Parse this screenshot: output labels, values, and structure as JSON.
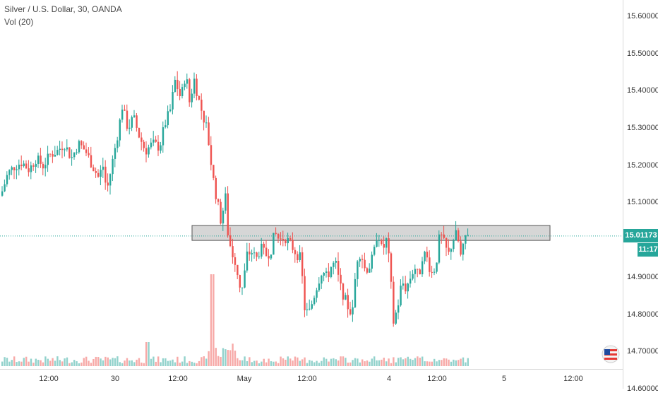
{
  "legend": {
    "title": "Silver / U.S. Dollar, 30, OANDA",
    "volume": "Vol (20)"
  },
  "colors": {
    "up": "#26a69a",
    "down": "#ef5350",
    "up_volume": "#92d2cc",
    "down_volume": "#f7a9a7",
    "price_line": "#26a69a",
    "zone_fill": "#d6d6d6",
    "zone_stroke": "#555555"
  },
  "price_axis": {
    "ticks": [
      "15.60000",
      "15.50000",
      "15.40000",
      "15.30000",
      "15.20000",
      "15.10000",
      "14.90000",
      "14.80000",
      "14.70000",
      "14.60000"
    ]
  },
  "last_price": {
    "value": "15.01173",
    "countdown": "11:17"
  },
  "time_axis": {
    "labels": [
      "12:00",
      "30",
      "12:00",
      "May",
      "12:00",
      "4",
      "12:00",
      "5",
      "12:00"
    ]
  },
  "chart_data": {
    "type": "candlestick",
    "title": "Silver / U.S. Dollar, 30, OANDA",
    "interval": "30",
    "source": "OANDA",
    "indicator": "Vol (20)",
    "ylim": [
      14.53,
      15.63
    ],
    "last_price": 15.01173,
    "resistance_zone": {
      "from": 15.0,
      "to": 15.04
    },
    "series": [
      {
        "name": "price",
        "close_path": [
          {
            "x": 0,
            "y": 15.12
          },
          {
            "x": 10,
            "y": 15.18
          },
          {
            "x": 20,
            "y": 15.2
          },
          {
            "x": 30,
            "y": 15.21
          },
          {
            "x": 40,
            "y": 15.19
          },
          {
            "x": 50,
            "y": 15.22
          },
          {
            "x": 60,
            "y": 15.2
          },
          {
            "x": 70,
            "y": 15.23
          },
          {
            "x": 80,
            "y": 15.24
          },
          {
            "x": 90,
            "y": 15.26
          },
          {
            "x": 100,
            "y": 15.22
          },
          {
            "x": 110,
            "y": 15.26
          },
          {
            "x": 120,
            "y": 15.24
          },
          {
            "x": 130,
            "y": 15.2
          },
          {
            "x": 138,
            "y": 15.17
          },
          {
            "x": 145,
            "y": 15.2
          },
          {
            "x": 150,
            "y": 15.13
          },
          {
            "x": 156,
            "y": 15.19
          },
          {
            "x": 162,
            "y": 15.25
          },
          {
            "x": 167,
            "y": 15.3
          },
          {
            "x": 172,
            "y": 15.36
          },
          {
            "x": 180,
            "y": 15.3
          },
          {
            "x": 188,
            "y": 15.33
          },
          {
            "x": 196,
            "y": 15.28
          },
          {
            "x": 205,
            "y": 15.24
          },
          {
            "x": 215,
            "y": 15.26
          },
          {
            "x": 225,
            "y": 15.25
          },
          {
            "x": 232,
            "y": 15.31
          },
          {
            "x": 240,
            "y": 15.35
          },
          {
            "x": 247,
            "y": 15.43
          },
          {
            "x": 255,
            "y": 15.38
          },
          {
            "x": 262,
            "y": 15.45
          },
          {
            "x": 268,
            "y": 15.36
          },
          {
            "x": 273,
            "y": 15.44
          },
          {
            "x": 280,
            "y": 15.38
          },
          {
            "x": 287,
            "y": 15.33
          },
          {
            "x": 292,
            "y": 15.3
          },
          {
            "x": 297,
            "y": 15.22
          },
          {
            "x": 302,
            "y": 15.15
          },
          {
            "x": 307,
            "y": 15.1
          },
          {
            "x": 312,
            "y": 15.05
          },
          {
            "x": 318,
            "y": 15.12
          },
          {
            "x": 322,
            "y": 15.01
          },
          {
            "x": 327,
            "y": 14.97
          },
          {
            "x": 333,
            "y": 14.94
          },
          {
            "x": 338,
            "y": 14.88
          },
          {
            "x": 343,
            "y": 14.87
          },
          {
            "x": 348,
            "y": 14.96
          },
          {
            "x": 355,
            "y": 14.97
          },
          {
            "x": 362,
            "y": 14.95
          },
          {
            "x": 368,
            "y": 14.98
          },
          {
            "x": 375,
            "y": 14.96
          },
          {
            "x": 382,
            "y": 14.97
          },
          {
            "x": 388,
            "y": 15.02
          },
          {
            "x": 395,
            "y": 15.0
          },
          {
            "x": 402,
            "y": 15.01
          },
          {
            "x": 410,
            "y": 14.99
          },
          {
            "x": 417,
            "y": 14.97
          },
          {
            "x": 425,
            "y": 14.95
          },
          {
            "x": 430,
            "y": 14.82
          },
          {
            "x": 436,
            "y": 14.8
          },
          {
            "x": 442,
            "y": 14.84
          },
          {
            "x": 448,
            "y": 14.88
          },
          {
            "x": 455,
            "y": 14.92
          },
          {
            "x": 462,
            "y": 14.9
          },
          {
            "x": 468,
            "y": 14.93
          },
          {
            "x": 474,
            "y": 14.94
          },
          {
            "x": 480,
            "y": 14.88
          },
          {
            "x": 486,
            "y": 14.85
          },
          {
            "x": 492,
            "y": 14.82
          },
          {
            "x": 498,
            "y": 14.8
          },
          {
            "x": 504,
            "y": 14.95
          },
          {
            "x": 510,
            "y": 14.97
          },
          {
            "x": 516,
            "y": 14.92
          },
          {
            "x": 522,
            "y": 14.93
          },
          {
            "x": 528,
            "y": 14.96
          },
          {
            "x": 534,
            "y": 15.03
          },
          {
            "x": 540,
            "y": 14.97
          },
          {
            "x": 546,
            "y": 15.0
          },
          {
            "x": 551,
            "y": 14.93
          },
          {
            "x": 556,
            "y": 14.78
          },
          {
            "x": 562,
            "y": 14.82
          },
          {
            "x": 568,
            "y": 14.89
          },
          {
            "x": 574,
            "y": 14.87
          },
          {
            "x": 580,
            "y": 14.9
          },
          {
            "x": 586,
            "y": 14.93
          },
          {
            "x": 592,
            "y": 14.9
          },
          {
            "x": 598,
            "y": 14.97
          },
          {
            "x": 604,
            "y": 14.95
          },
          {
            "x": 610,
            "y": 14.91
          },
          {
            "x": 616,
            "y": 14.93
          },
          {
            "x": 622,
            "y": 15.02
          },
          {
            "x": 628,
            "y": 14.99
          },
          {
            "x": 634,
            "y": 14.96
          },
          {
            "x": 640,
            "y": 15.0
          },
          {
            "x": 646,
            "y": 15.02
          },
          {
            "x": 652,
            "y": 14.95
          },
          {
            "x": 658,
            "y": 15.01
          },
          {
            "x": 664,
            "y": 15.03
          }
        ]
      }
    ]
  }
}
